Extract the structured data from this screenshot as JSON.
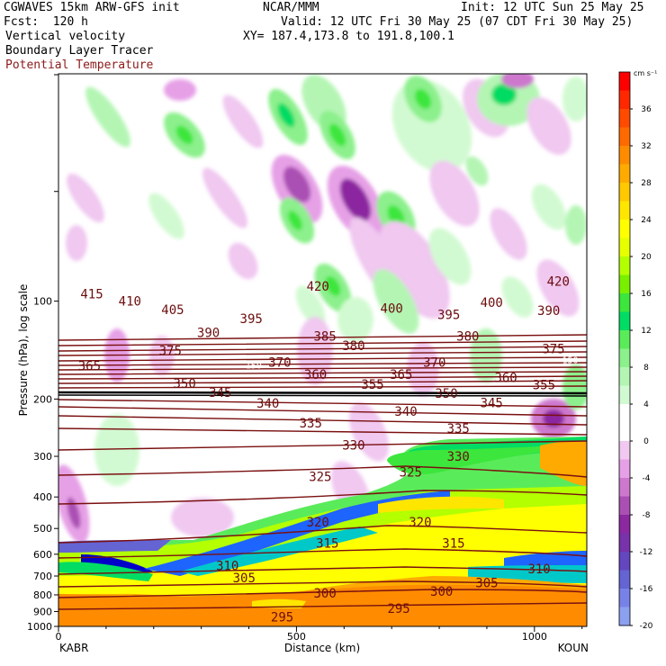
{
  "header": {
    "model": "CGWAVES 15km ARW-GFS init",
    "center": "NCAR/MMM",
    "init": "Init: 12 UTC Sun 25 May 25",
    "forecast": "Fcst:  120 h",
    "valid": "Valid: 12 UTC Fri 30 May 25 (07 CDT Fri 30 May 25)",
    "field1": "Vertical velocity",
    "field2": "Boundary Layer Tracer",
    "field3": "Potential Temperature",
    "xy": "XY= 187.4,173.8 to 191.8,100.1"
  },
  "colors": {
    "theta_contour": "#7a1010",
    "title_red": "#8b1a1a"
  },
  "chart_data": {
    "type": "cross-section",
    "xlabel": "Distance (km)",
    "ylabel": "Pressure (hPa), log scale",
    "xlim": [
      0,
      1110
    ],
    "ylim": [
      1000,
      20
    ],
    "y_scale": "log",
    "x_ticks": [
      {
        "value": 0,
        "label": "0"
      },
      {
        "value": 500,
        "label": "500"
      },
      {
        "value": 1000,
        "label": "1000"
      }
    ],
    "x_endpoints": {
      "left": "KABR",
      "right": "KOUN"
    },
    "y_ticks": [
      {
        "value": 100,
        "label": "100"
      },
      {
        "value": 200,
        "label": "200"
      },
      {
        "value": 300,
        "label": "300"
      },
      {
        "value": 400,
        "label": "400"
      },
      {
        "value": 500,
        "label": "500"
      },
      {
        "value": 600,
        "label": "600"
      },
      {
        "value": 700,
        "label": "700"
      },
      {
        "value": 800,
        "label": "800"
      },
      {
        "value": 900,
        "label": "900"
      },
      {
        "value": 1000,
        "label": "1000"
      }
    ],
    "colorbar": {
      "units": "cm s⁻¹",
      "levels": [
        {
          "label": "",
          "color": "#ff0000"
        },
        {
          "label": "36",
          "color": "#ff2800"
        },
        {
          "label": "",
          "color": "#ff4a00"
        },
        {
          "label": "32",
          "color": "#ff6a00"
        },
        {
          "label": "",
          "color": "#ff8c00"
        },
        {
          "label": "28",
          "color": "#ffaa00"
        },
        {
          "label": "",
          "color": "#ffc800"
        },
        {
          "label": "24",
          "color": "#ffe600"
        },
        {
          "label": "",
          "color": "#ffff00"
        },
        {
          "label": "20",
          "color": "#e6ff00"
        },
        {
          "label": "",
          "color": "#b4ff00"
        },
        {
          "label": "16",
          "color": "#78f000"
        },
        {
          "label": "",
          "color": "#3ce63c"
        },
        {
          "label": "12",
          "color": "#00dc64"
        },
        {
          "label": "",
          "color": "#5aeb5a"
        },
        {
          "label": "8",
          "color": "#8cf08c"
        },
        {
          "label": "",
          "color": "#b4f5b4"
        },
        {
          "label": "4",
          "color": "#d2fad2"
        },
        {
          "label": "",
          "color": "#ffffff"
        },
        {
          "label": "0",
          "color": "#ffffff"
        },
        {
          "label": "",
          "color": "#f0c8f0"
        },
        {
          "label": "-4",
          "color": "#e6a0e6"
        },
        {
          "label": "",
          "color": "#cd78cd"
        },
        {
          "label": "-8",
          "color": "#aa50b4"
        },
        {
          "label": "",
          "color": "#8c28a0"
        },
        {
          "label": "-12",
          "color": "#7832aa"
        },
        {
          "label": "",
          "color": "#6446be"
        },
        {
          "label": "-16",
          "color": "#6464d2"
        },
        {
          "label": "",
          "color": "#7882e6"
        },
        {
          "label": "-20",
          "color": "#8ca0f0"
        }
      ]
    },
    "contour_labels": [
      {
        "x": 545,
        "p": 90,
        "text": "420"
      },
      {
        "x": 1050,
        "p": 87,
        "text": "420"
      },
      {
        "x": 70,
        "p": 95,
        "text": "415"
      },
      {
        "x": 150,
        "p": 100,
        "text": "410"
      },
      {
        "x": 240,
        "p": 106,
        "text": "405"
      },
      {
        "x": 700,
        "p": 105,
        "text": "400"
      },
      {
        "x": 910,
        "p": 101,
        "text": "400"
      },
      {
        "x": 405,
        "p": 113,
        "text": "395"
      },
      {
        "x": 820,
        "p": 110,
        "text": "395"
      },
      {
        "x": 1030,
        "p": 107,
        "text": "390"
      },
      {
        "x": 315,
        "p": 125,
        "text": "390"
      },
      {
        "x": 560,
        "p": 128,
        "text": "385"
      },
      {
        "x": 620,
        "p": 137,
        "text": "380"
      },
      {
        "x": 860,
        "p": 128,
        "text": "380"
      },
      {
        "x": 235,
        "p": 142,
        "text": "375"
      },
      {
        "x": 1040,
        "p": 140,
        "text": "375"
      },
      {
        "x": 465,
        "p": 154,
        "text": "370"
      },
      {
        "x": 790,
        "p": 154,
        "text": "370"
      },
      {
        "x": 65,
        "p": 158,
        "text": "365"
      },
      {
        "x": 720,
        "p": 168,
        "text": "365"
      },
      {
        "x": 540,
        "p": 168,
        "text": "360"
      },
      {
        "x": 940,
        "p": 172,
        "text": "360"
      },
      {
        "x": 660,
        "p": 180,
        "text": "355"
      },
      {
        "x": 1020,
        "p": 181,
        "text": "355"
      },
      {
        "x": 265,
        "p": 179,
        "text": "350"
      },
      {
        "x": 815,
        "p": 192,
        "text": "350"
      },
      {
        "x": 340,
        "p": 191,
        "text": "345"
      },
      {
        "x": 910,
        "p": 205,
        "text": "345"
      },
      {
        "x": 440,
        "p": 206,
        "text": "340"
      },
      {
        "x": 730,
        "p": 218,
        "text": "340"
      },
      {
        "x": 530,
        "p": 237,
        "text": "335"
      },
      {
        "x": 840,
        "p": 246,
        "text": "335"
      },
      {
        "x": 620,
        "p": 277,
        "text": "330"
      },
      {
        "x": 840,
        "p": 300,
        "text": "330"
      },
      {
        "x": 550,
        "p": 346,
        "text": "325"
      },
      {
        "x": 740,
        "p": 335,
        "text": "325"
      },
      {
        "x": 545,
        "p": 477,
        "text": "320"
      },
      {
        "x": 760,
        "p": 477,
        "text": "320"
      },
      {
        "x": 565,
        "p": 555,
        "text": "315"
      },
      {
        "x": 830,
        "p": 555,
        "text": "315"
      },
      {
        "x": 355,
        "p": 650,
        "text": "310"
      },
      {
        "x": 1010,
        "p": 665,
        "text": "310"
      },
      {
        "x": 390,
        "p": 710,
        "text": "305"
      },
      {
        "x": 900,
        "p": 735,
        "text": "305"
      },
      {
        "x": 560,
        "p": 790,
        "text": "300"
      },
      {
        "x": 805,
        "p": 780,
        "text": "300"
      },
      {
        "x": 715,
        "p": 880,
        "text": "295"
      },
      {
        "x": 470,
        "p": 935,
        "text": "295"
      }
    ],
    "tracer_labels": [
      {
        "x": 410,
        "p": 157,
        "text": "150"
      },
      {
        "x": 1075,
        "p": 151,
        "text": "150"
      }
    ]
  }
}
